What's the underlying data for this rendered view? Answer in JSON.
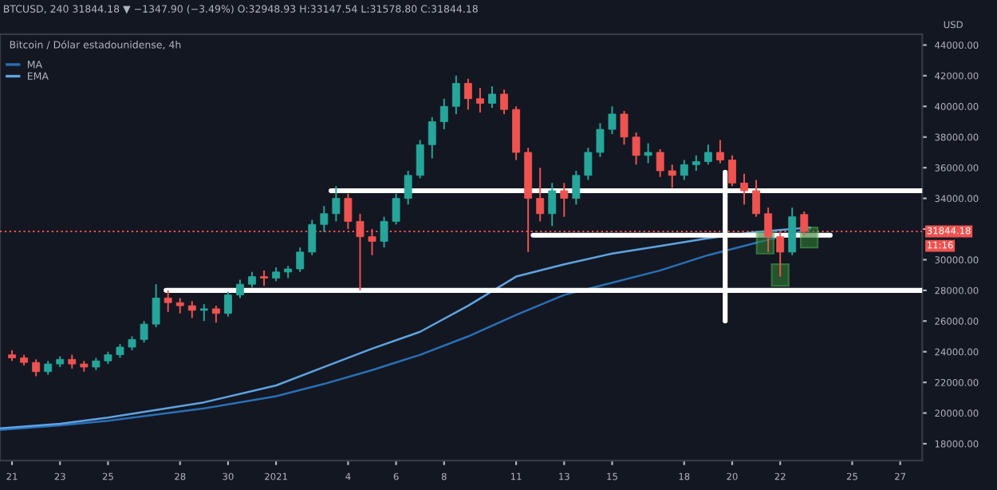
{
  "chart_data": {
    "type": "candlestick",
    "title": "BTCUSD, 240 31844.18 ▼ −1347.90 (−3.49%) O:32948.93 H:33147.54 L:31578.80 C:31844.18",
    "subtitle": "Bitcoin / Dólar estadounidense, 4h",
    "ylabel": "USD",
    "x": [
      "2020-12-21T00:00",
      "2020-12-21T12:00",
      "2020-12-22T00:00",
      "2020-12-22T12:00",
      "2020-12-23T00:00",
      "2020-12-23T12:00",
      "2020-12-24T00:00",
      "2020-12-24T12:00",
      "2020-12-25T00:00",
      "2020-12-25T12:00",
      "2020-12-26T00:00",
      "2020-12-26T12:00",
      "2020-12-27T00:00",
      "2020-12-27T12:00",
      "2020-12-28T00:00",
      "2020-12-28T12:00",
      "2020-12-29T00:00",
      "2020-12-29T12:00",
      "2020-12-30T00:00",
      "2020-12-30T12:00",
      "2020-12-31T00:00",
      "2020-12-31T12:00",
      "2021-01-01T00:00",
      "2021-01-01T12:00",
      "2021-01-02T00:00",
      "2021-01-02T12:00",
      "2021-01-03T00:00",
      "2021-01-03T12:00",
      "2021-01-04T00:00",
      "2021-01-04T12:00",
      "2021-01-05T00:00",
      "2021-01-05T12:00",
      "2021-01-06T00:00",
      "2021-01-06T12:00",
      "2021-01-07T00:00",
      "2021-01-07T12:00",
      "2021-01-08T00:00",
      "2021-01-08T12:00",
      "2021-01-09T00:00",
      "2021-01-09T12:00",
      "2021-01-10T00:00",
      "2021-01-10T12:00",
      "2021-01-11T00:00",
      "2021-01-11T12:00",
      "2021-01-12T00:00",
      "2021-01-12T12:00",
      "2021-01-13T00:00",
      "2021-01-13T12:00",
      "2021-01-14T00:00",
      "2021-01-14T12:00",
      "2021-01-15T00:00",
      "2021-01-15T12:00",
      "2021-01-16T00:00",
      "2021-01-16T12:00",
      "2021-01-17T00:00",
      "2021-01-17T12:00",
      "2021-01-18T00:00",
      "2021-01-18T12:00",
      "2021-01-19T00:00",
      "2021-01-19T12:00",
      "2021-01-20T00:00",
      "2021-01-20T12:00",
      "2021-01-21T00:00",
      "2021-01-21T12:00",
      "2021-01-22T00:00",
      "2021-01-22T12:00",
      "2021-01-23T00:00"
    ],
    "ohlc": [
      [
        23800,
        24100,
        23400,
        23600
      ],
      [
        23600,
        23800,
        23100,
        23300
      ],
      [
        23300,
        23500,
        22400,
        22700
      ],
      [
        22700,
        23400,
        22500,
        23200
      ],
      [
        23200,
        23700,
        23000,
        23500
      ],
      [
        23500,
        23800,
        22900,
        23200
      ],
      [
        23200,
        23400,
        22700,
        23000
      ],
      [
        23000,
        23600,
        22800,
        23400
      ],
      [
        23400,
        24000,
        23200,
        23800
      ],
      [
        23800,
        24500,
        23600,
        24300
      ],
      [
        24300,
        25000,
        24100,
        24800
      ],
      [
        24800,
        26000,
        24600,
        25800
      ],
      [
        25800,
        28400,
        25600,
        27500
      ],
      [
        27500,
        28000,
        26600,
        27200
      ],
      [
        27200,
        27500,
        26500,
        27000
      ],
      [
        27000,
        27300,
        26200,
        26700
      ],
      [
        26700,
        27100,
        26000,
        26800
      ],
      [
        26800,
        27000,
        25900,
        26500
      ],
      [
        26500,
        27900,
        26300,
        27700
      ],
      [
        27700,
        28700,
        27500,
        28400
      ],
      [
        28400,
        29200,
        28200,
        28900
      ],
      [
        28900,
        29300,
        28300,
        28800
      ],
      [
        28800,
        29500,
        28600,
        29200
      ],
      [
        29200,
        29600,
        28800,
        29400
      ],
      [
        29400,
        30800,
        29200,
        30500
      ],
      [
        30500,
        32600,
        30300,
        32300
      ],
      [
        32300,
        33500,
        31800,
        33000
      ],
      [
        33000,
        34800,
        32500,
        34000
      ],
      [
        34000,
        34300,
        32000,
        32500
      ],
      [
        32500,
        33000,
        28000,
        31500
      ],
      [
        31500,
        32000,
        30300,
        31200
      ],
      [
        31200,
        32800,
        30800,
        32500
      ],
      [
        32500,
        34300,
        32300,
        34000
      ],
      [
        34000,
        35800,
        33600,
        35500
      ],
      [
        35500,
        37800,
        35300,
        37500
      ],
      [
        37500,
        39300,
        36600,
        39000
      ],
      [
        39000,
        40500,
        38500,
        40000
      ],
      [
        40000,
        42000,
        39500,
        41500
      ],
      [
        41500,
        41800,
        39800,
        40500
      ],
      [
        40500,
        41200,
        39600,
        40200
      ],
      [
        40200,
        41300,
        39900,
        40800
      ],
      [
        40800,
        41100,
        39500,
        39800
      ],
      [
        39800,
        40000,
        36500,
        37000
      ],
      [
        37000,
        37300,
        30500,
        34000
      ],
      [
        34000,
        36000,
        32500,
        33000
      ],
      [
        33000,
        35000,
        32200,
        34500
      ],
      [
        34500,
        35000,
        32800,
        34000
      ],
      [
        34000,
        35800,
        33600,
        35500
      ],
      [
        35500,
        37300,
        35200,
        37000
      ],
      [
        37000,
        38900,
        36700,
        38500
      ],
      [
        38500,
        40000,
        38200,
        39500
      ],
      [
        39500,
        39700,
        37500,
        38000
      ],
      [
        38000,
        38300,
        36200,
        36800
      ],
      [
        36800,
        37600,
        36300,
        37000
      ],
      [
        37000,
        37200,
        35400,
        35800
      ],
      [
        35800,
        36200,
        34700,
        35500
      ],
      [
        35500,
        36500,
        35200,
        36200
      ],
      [
        36200,
        36800,
        35800,
        36400
      ],
      [
        36400,
        37500,
        36200,
        37000
      ],
      [
        37000,
        37800,
        36300,
        36500
      ],
      [
        36500,
        36800,
        34800,
        35000
      ],
      [
        35000,
        35600,
        33600,
        34500
      ],
      [
        34500,
        35200,
        32800,
        33000
      ],
      [
        33000,
        33400,
        30500,
        31500
      ],
      [
        31500,
        31800,
        28900,
        30500
      ],
      [
        30500,
        33400,
        30300,
        32800
      ],
      [
        32948.93,
        33147.54,
        31578.8,
        31844.18
      ]
    ],
    "colors": [
      "#ef5350",
      "#ef5350",
      "#ef5350",
      "#26a69a",
      "#26a69a",
      "#ef5350",
      "#ef5350",
      "#26a69a",
      "#26a69a",
      "#26a69a",
      "#26a69a",
      "#26a69a",
      "#26a69a",
      "#ef5350",
      "#ef5350",
      "#ef5350",
      "#26a69a",
      "#ef5350",
      "#26a69a",
      "#26a69a",
      "#26a69a",
      "#ef5350",
      "#26a69a",
      "#26a69a",
      "#26a69a",
      "#26a69a",
      "#26a69a",
      "#26a69a",
      "#ef5350",
      "#ef5350",
      "#ef5350",
      "#26a69a",
      "#26a69a",
      "#26a69a",
      "#26a69a",
      "#26a69a",
      "#26a69a",
      "#26a69a",
      "#ef5350",
      "#ef5350",
      "#26a69a",
      "#ef5350",
      "#ef5350",
      "#ef5350",
      "#ef5350",
      "#26a69a",
      "#ef5350",
      "#26a69a",
      "#26a69a",
      "#26a69a",
      "#26a69a",
      "#ef5350",
      "#ef5350",
      "#26a69a",
      "#ef5350",
      "#ef5350",
      "#26a69a",
      "#26a69a",
      "#26a69a",
      "#ef5350",
      "#ef5350",
      "#ef5350",
      "#ef5350",
      "#ef5350",
      "#ef5350",
      "#26a69a",
      "#ef5350"
    ],
    "series": [
      {
        "name": "MA",
        "type": "line",
        "color": "#2a6fb5",
        "x": [
          "2020-12-20T12:00",
          "2020-12-23",
          "2020-12-25",
          "2020-12-27",
          "2020-12-29",
          "2021-01-01",
          "2021-01-03",
          "2021-01-05",
          "2021-01-07",
          "2021-01-09",
          "2021-01-11",
          "2021-01-13",
          "2021-01-15",
          "2021-01-17",
          "2021-01-19",
          "2021-01-21",
          "2021-01-23T06:00"
        ],
        "values": [
          18900,
          19200,
          19500,
          19900,
          20300,
          21100,
          21900,
          22800,
          23800,
          25000,
          26400,
          27700,
          28500,
          29300,
          30300,
          31100,
          32000
        ]
      },
      {
        "name": "EMA",
        "type": "line",
        "color": "#5fa3e0",
        "x": [
          "2020-12-20T12:00",
          "2020-12-23",
          "2020-12-25",
          "2020-12-27",
          "2020-12-29",
          "2021-01-01",
          "2021-01-03",
          "2021-01-05",
          "2021-01-07",
          "2021-01-09",
          "2021-01-11",
          "2021-01-13",
          "2021-01-15",
          "2021-01-17",
          "2021-01-19",
          "2021-01-21",
          "2021-01-23T06:00"
        ],
        "values": [
          19000,
          19300,
          19700,
          20200,
          20700,
          21800,
          23000,
          24200,
          25300,
          27000,
          28900,
          29700,
          30400,
          30900,
          31400,
          31800,
          32100
        ]
      },
      {
        "type": "line",
        "color": "#ffffff",
        "x": [
          "2021-01-03T07:00",
          "2021-01-27T22:00"
        ],
        "values": [
          34500,
          34500
        ]
      },
      {
        "type": "line",
        "color": "#ffffff",
        "x": [
          "2020-12-27T10:00",
          "2021-01-27T22:00"
        ],
        "values": [
          28000,
          28000
        ]
      },
      {
        "type": "line",
        "color": "#ffffff",
        "x": [
          "2021-01-11T17:00",
          "2021-01-24T02:00"
        ],
        "values": [
          31600,
          31600
        ]
      },
      {
        "type": "line",
        "color": "#ffffff",
        "x": [
          "2021-01-19T17:00",
          "2021-01-19T17:00"
        ],
        "values": [
          35700,
          26000
        ]
      },
      {
        "type": "bar",
        "color": "#2e7d32",
        "x": [
          "2021-01-21T09:00",
          "2021-01-22T00:00",
          "2021-01-23T05:00"
        ],
        "base": [
          30400,
          28300,
          30800
        ],
        "values": [
          1400,
          1400,
          1300
        ]
      }
    ],
    "ref_lines": [
      {
        "axis": "y",
        "value": 31844.18,
        "label": "31844.18",
        "color": "#ef5350",
        "line_style": "dotted"
      }
    ],
    "annotations": [
      "11:16"
    ],
    "xlim": [
      "2020-12-20T12:00",
      "2021-01-27T22:00"
    ],
    "xticks": [
      {
        "value": "2020-12-21",
        "label": "21"
      },
      {
        "value": "2020-12-23",
        "label": "23"
      },
      {
        "value": "2020-12-25",
        "label": "25"
      },
      {
        "value": "2020-12-28",
        "label": "28"
      },
      {
        "value": "2020-12-30",
        "label": "30"
      },
      {
        "value": "2021-01-01",
        "label": "2021"
      },
      {
        "value": "2021-01-04",
        "label": "4"
      },
      {
        "value": "2021-01-06",
        "label": "6"
      },
      {
        "value": "2021-01-08",
        "label": "8"
      },
      {
        "value": "2021-01-11",
        "label": "11"
      },
      {
        "value": "2021-01-13",
        "label": "13"
      },
      {
        "value": "2021-01-15",
        "label": "15"
      },
      {
        "value": "2021-01-18",
        "label": "18"
      },
      {
        "value": "2021-01-20",
        "label": "20"
      },
      {
        "value": "2021-01-22",
        "label": "22"
      },
      {
        "value": "2021-01-25",
        "label": "25"
      },
      {
        "value": "2021-01-27",
        "label": "27"
      }
    ],
    "ylim": [
      16900,
      44700
    ],
    "yticks": [
      {
        "value": 18000,
        "label": "18000.00"
      },
      {
        "value": 20000,
        "label": "20000.00"
      },
      {
        "value": 22000,
        "label": "22000.00"
      },
      {
        "value": 24000,
        "label": "24000.00"
      },
      {
        "value": 26000,
        "label": "26000.00"
      },
      {
        "value": 28000,
        "label": "28000.00"
      },
      {
        "value": 30000,
        "label": "30000.00"
      },
      {
        "value": 32000,
        "label": null
      },
      {
        "value": 34000,
        "label": "34000.00"
      },
      {
        "value": 36000,
        "label": "36000.00"
      },
      {
        "value": 38000,
        "label": "38000.00"
      },
      {
        "value": 40000,
        "label": "40000.00"
      },
      {
        "value": 42000,
        "label": "42000.00"
      },
      {
        "value": 44000,
        "label": "44000.00"
      }
    ],
    "legend": "top left",
    "grid": false
  }
}
